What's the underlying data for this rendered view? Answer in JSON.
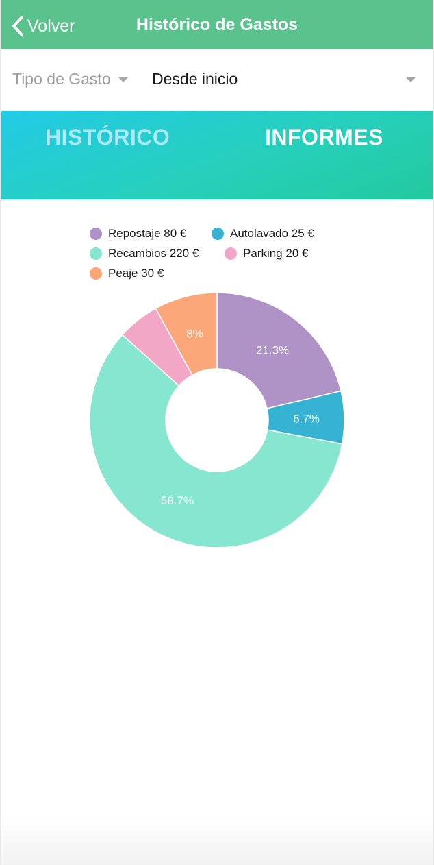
{
  "navbar": {
    "back_label": "Volver",
    "title": "Histórico de Gastos"
  },
  "filters": {
    "type_label": "Tipo de Gasto",
    "range_value": "Desde inicio"
  },
  "tabs": [
    {
      "label": "HISTÓRICO",
      "active": false
    },
    {
      "label": "INFORMES",
      "active": true
    }
  ],
  "legend": [
    {
      "text": "Repostaje 80 €",
      "color": "#b093c6"
    },
    {
      "text": "Autolavado 25 €",
      "color": "#36b3d3"
    },
    {
      "text": "Recambios 220 €",
      "color": "#87e6d0"
    },
    {
      "text": "Parking 20 €",
      "color": "#f2a7c6"
    },
    {
      "text": "Peaje 30 €",
      "color": "#fba77a"
    }
  ],
  "chart_data": {
    "type": "pie",
    "donut": true,
    "categories": [
      "Repostaje",
      "Autolavado",
      "Recambios",
      "Parking",
      "Peaje"
    ],
    "values": [
      80,
      25,
      220,
      20,
      30
    ],
    "unit": "€",
    "colors": [
      "#b093c6",
      "#36b3d3",
      "#87e6d0",
      "#f2a7c6",
      "#fba77a"
    ],
    "data_labels": [
      "21.3%",
      "6.7%",
      "58.7%",
      "",
      "8%"
    ],
    "legend_position": "top"
  }
}
